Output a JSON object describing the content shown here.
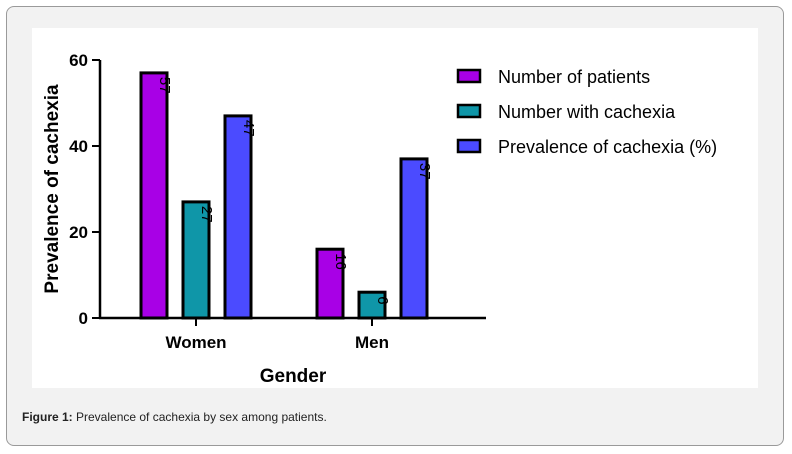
{
  "chart_data": {
    "type": "bar",
    "xlabel": "Gender",
    "ylabel": "Prevalence of cachexia",
    "ylim": [
      0,
      60
    ],
    "yticks": [
      0,
      20,
      40,
      60
    ],
    "categories": [
      "Women",
      "Men"
    ],
    "series": [
      {
        "name": "Number of patients",
        "values": [
          57,
          16
        ],
        "color": "#a800e6"
      },
      {
        "name": "Number with cachexia",
        "values": [
          27,
          6
        ],
        "color": "#0f96a8"
      },
      {
        "name": "Prevalence of cachexia (%)",
        "values": [
          47,
          37
        ],
        "color": "#4b4bff"
      }
    ],
    "legend_position": "top-right",
    "grid": false
  },
  "caption": {
    "label": "Figure 1:",
    "text": " Prevalence of cachexia by sex among patients."
  }
}
